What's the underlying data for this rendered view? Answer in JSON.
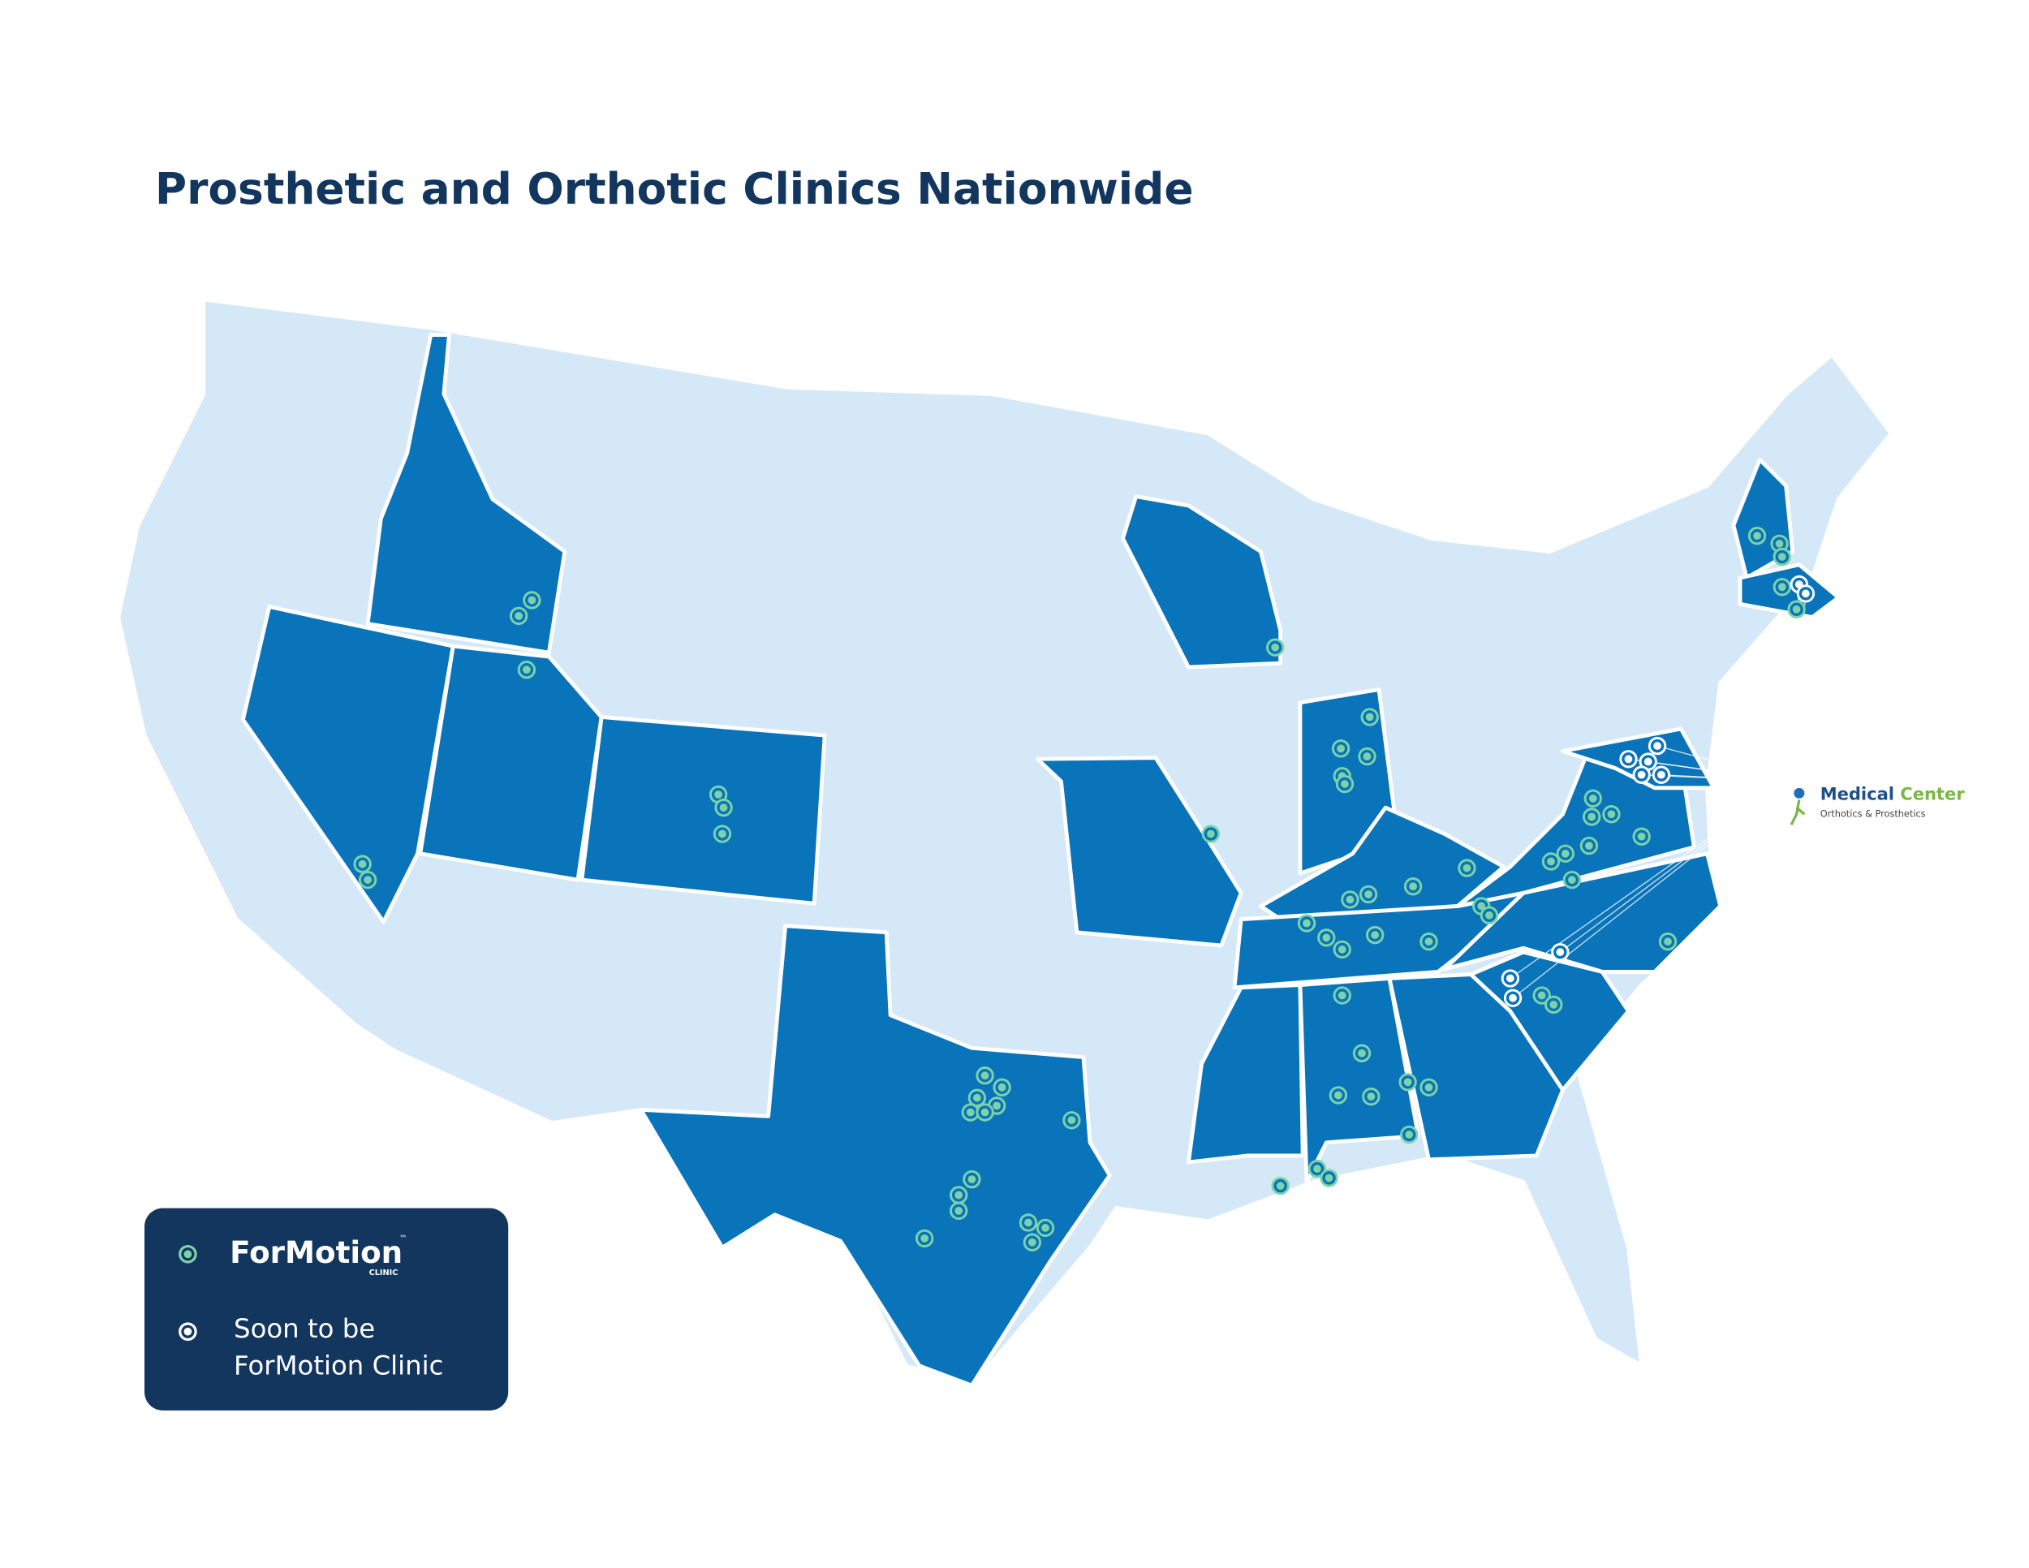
{
  "header": {
    "title": "Prosthetic and Orthotic Clinics Nationwide"
  },
  "legend": {
    "items": [
      {
        "label": "ForMotion",
        "mark": "™",
        "sublabel": "CLINIC"
      },
      {
        "lines": [
          "Soon to be",
          "ForMotion Clinic"
        ]
      }
    ]
  },
  "partner": {
    "name_first": "Medical",
    "name_second": "Center",
    "tagline": "Orthotics & Prosthetics"
  }
}
